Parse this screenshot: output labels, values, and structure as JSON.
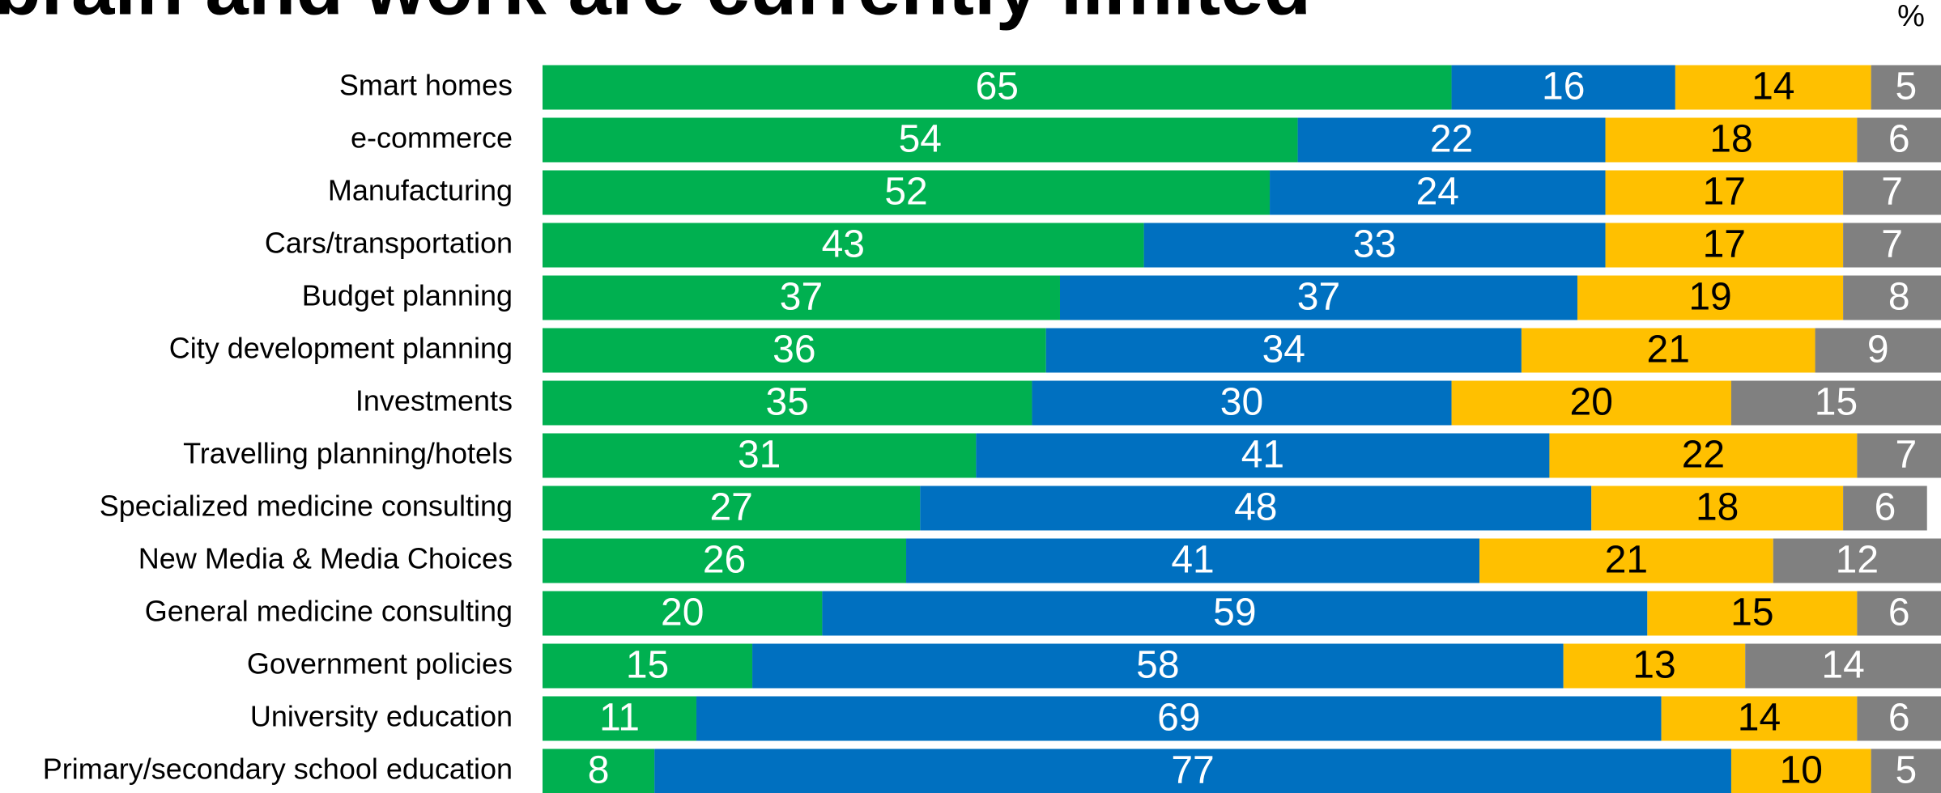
{
  "chart_data": {
    "type": "stacked_barh",
    "title": "brain and work are currently limited",
    "unit_label": "%",
    "categories": [
      "Smart homes",
      "e-commerce",
      "Manufacturing",
      "Cars/transportation",
      "Budget planning",
      "City development planning",
      "Investments",
      "Travelling planning/hotels",
      "Specialized medicine consulting",
      "New Media & Media Choices",
      "General medicine consulting",
      "Government policies",
      "University education",
      "Primary/secondary school education"
    ],
    "series": [
      {
        "color": "#00b050",
        "label_color": "#ffffff",
        "values": [
          65,
          54,
          52,
          43,
          37,
          36,
          35,
          31,
          27,
          26,
          20,
          15,
          11,
          8
        ]
      },
      {
        "color": "#0070c0",
        "label_color": "#ffffff",
        "values": [
          16,
          22,
          24,
          33,
          37,
          34,
          30,
          41,
          48,
          41,
          59,
          58,
          69,
          77
        ]
      },
      {
        "color": "#ffc000",
        "label_color": "#000000",
        "values": [
          14,
          18,
          17,
          17,
          19,
          21,
          20,
          22,
          18,
          21,
          15,
          13,
          14,
          10
        ]
      },
      {
        "color": "#808080",
        "label_color": "#ffffff",
        "values": [
          5,
          6,
          7,
          7,
          8,
          9,
          15,
          7,
          6,
          12,
          6,
          14,
          6,
          5
        ]
      }
    ],
    "xlim": [
      0,
      100
    ]
  }
}
